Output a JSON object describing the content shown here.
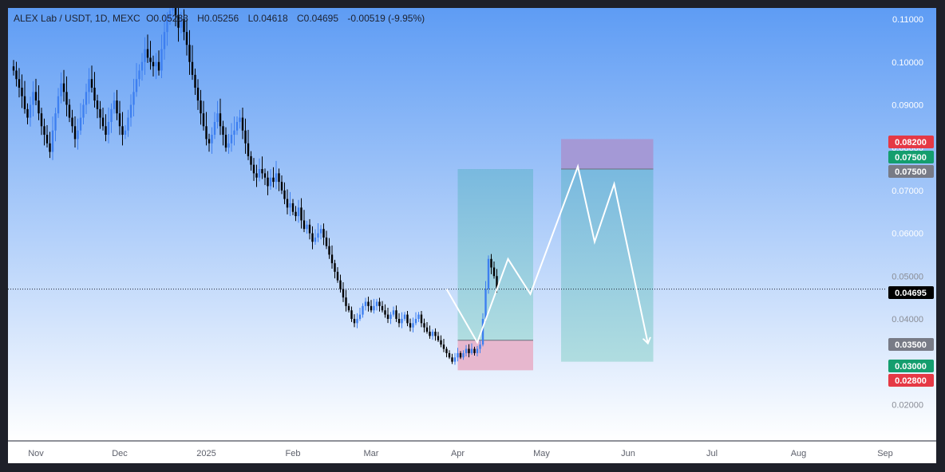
{
  "legend": {
    "symbol": "ALEX Lab / USDT, 1D, MEXC",
    "open_label": "O",
    "open": "0.05233",
    "high_label": "H",
    "high": "0.05256",
    "low_label": "L",
    "low": "0.04618",
    "close_label": "C",
    "close": "0.04695",
    "change": "-0.00519 (-9.95%)"
  },
  "colors": {
    "bg_top": "#5e9cf4",
    "bg_bottom": "#ffffff",
    "candle_up": "#3d7ff0",
    "candle_down": "#000000",
    "target_fill": "#7ec7d6",
    "stop_fill": "#e7b7ce",
    "short_stop_fill": "#a499d6",
    "label_red": "#e53945",
    "label_green": "#149e6e",
    "label_grey": "#787b86",
    "label_black": "#000000"
  },
  "chart_data": {
    "type": "candlestick",
    "yaxis_ticks": [
      "0.11000",
      "0.10000",
      "0.09000",
      "0.08000",
      "0.07000",
      "0.06000",
      "0.05000",
      "0.04000",
      "0.02000"
    ],
    "xaxis_ticks": [
      "Nov",
      "Dec",
      "2025",
      "Feb",
      "Mar",
      "Apr",
      "May",
      "Jun",
      "Jul",
      "Aug",
      "Sep"
    ],
    "ylim": [
      0.0115,
      0.1115
    ],
    "price_levels": [
      {
        "label": "0.08200",
        "value": 0.082,
        "color": "label_red"
      },
      {
        "label": "0.07500",
        "value": 0.075,
        "color": "label_green"
      },
      {
        "label": "0.07500",
        "value": 0.075,
        "color": "label_grey"
      },
      {
        "label": "0.04695",
        "value": 0.04695,
        "color": "label_black"
      },
      {
        "label": "0.03500",
        "value": 0.035,
        "color": "label_grey"
      },
      {
        "label": "0.03000",
        "value": 0.03,
        "color": "label_green"
      },
      {
        "label": "0.02800",
        "value": 0.028,
        "color": "label_red"
      }
    ],
    "closes": [
      0.098,
      0.096,
      0.094,
      0.092,
      0.089,
      0.087,
      0.09,
      0.093,
      0.091,
      0.088,
      0.085,
      0.083,
      0.081,
      0.079,
      0.084,
      0.088,
      0.092,
      0.095,
      0.093,
      0.09,
      0.087,
      0.085,
      0.082,
      0.084,
      0.087,
      0.09,
      0.093,
      0.096,
      0.094,
      0.091,
      0.089,
      0.087,
      0.085,
      0.083,
      0.086,
      0.089,
      0.091,
      0.088,
      0.085,
      0.083,
      0.084,
      0.087,
      0.09,
      0.093,
      0.096,
      0.098,
      0.1,
      0.103,
      0.101,
      0.1,
      0.099,
      0.1,
      0.098,
      0.103,
      0.107,
      0.11,
      0.112,
      0.113,
      0.111,
      0.108,
      0.11,
      0.107,
      0.104,
      0.1,
      0.097,
      0.094,
      0.091,
      0.088,
      0.085,
      0.082,
      0.081,
      0.083,
      0.086,
      0.088,
      0.085,
      0.083,
      0.08,
      0.081,
      0.083,
      0.084,
      0.086,
      0.087,
      0.084,
      0.081,
      0.078,
      0.076,
      0.074,
      0.073,
      0.075,
      0.074,
      0.073,
      0.071,
      0.073,
      0.072,
      0.074,
      0.072,
      0.07,
      0.068,
      0.066,
      0.067,
      0.065,
      0.064,
      0.066,
      0.063,
      0.061,
      0.062,
      0.06,
      0.058,
      0.059,
      0.06,
      0.061,
      0.059,
      0.057,
      0.055,
      0.053,
      0.051,
      0.049,
      0.047,
      0.045,
      0.043,
      0.042,
      0.04,
      0.039,
      0.04,
      0.041,
      0.043,
      0.044,
      0.043,
      0.042,
      0.043,
      0.044,
      0.043,
      0.042,
      0.041,
      0.04,
      0.041,
      0.042,
      0.04,
      0.039,
      0.04,
      0.041,
      0.039,
      0.038,
      0.039,
      0.04,
      0.041,
      0.039,
      0.038,
      0.037,
      0.036,
      0.037,
      0.036,
      0.035,
      0.034,
      0.033,
      0.032,
      0.031,
      0.03,
      0.031,
      0.032,
      0.031,
      0.032,
      0.033,
      0.032,
      0.033,
      0.032,
      0.033,
      0.034,
      0.04,
      0.047,
      0.054,
      0.052,
      0.05,
      0.04695
    ],
    "projection_path": [
      {
        "date": "2025-03-28",
        "price": 0.04695
      },
      {
        "date": "2025-04-08",
        "price": 0.0345
      },
      {
        "date": "2025-04-19",
        "price": 0.054
      },
      {
        "date": "2025-04-27",
        "price": 0.0458
      },
      {
        "date": "2025-05-14",
        "price": 0.0756
      },
      {
        "date": "2025-05-20",
        "price": 0.058
      },
      {
        "date": "2025-05-27",
        "price": 0.0715
      },
      {
        "date": "2025-06-08",
        "price": 0.0345
      }
    ],
    "long_position": {
      "entry": 0.035,
      "target": 0.075,
      "stop": 0.028
    },
    "short_position": {
      "entry": 0.075,
      "target": 0.03,
      "stop": 0.082
    }
  }
}
